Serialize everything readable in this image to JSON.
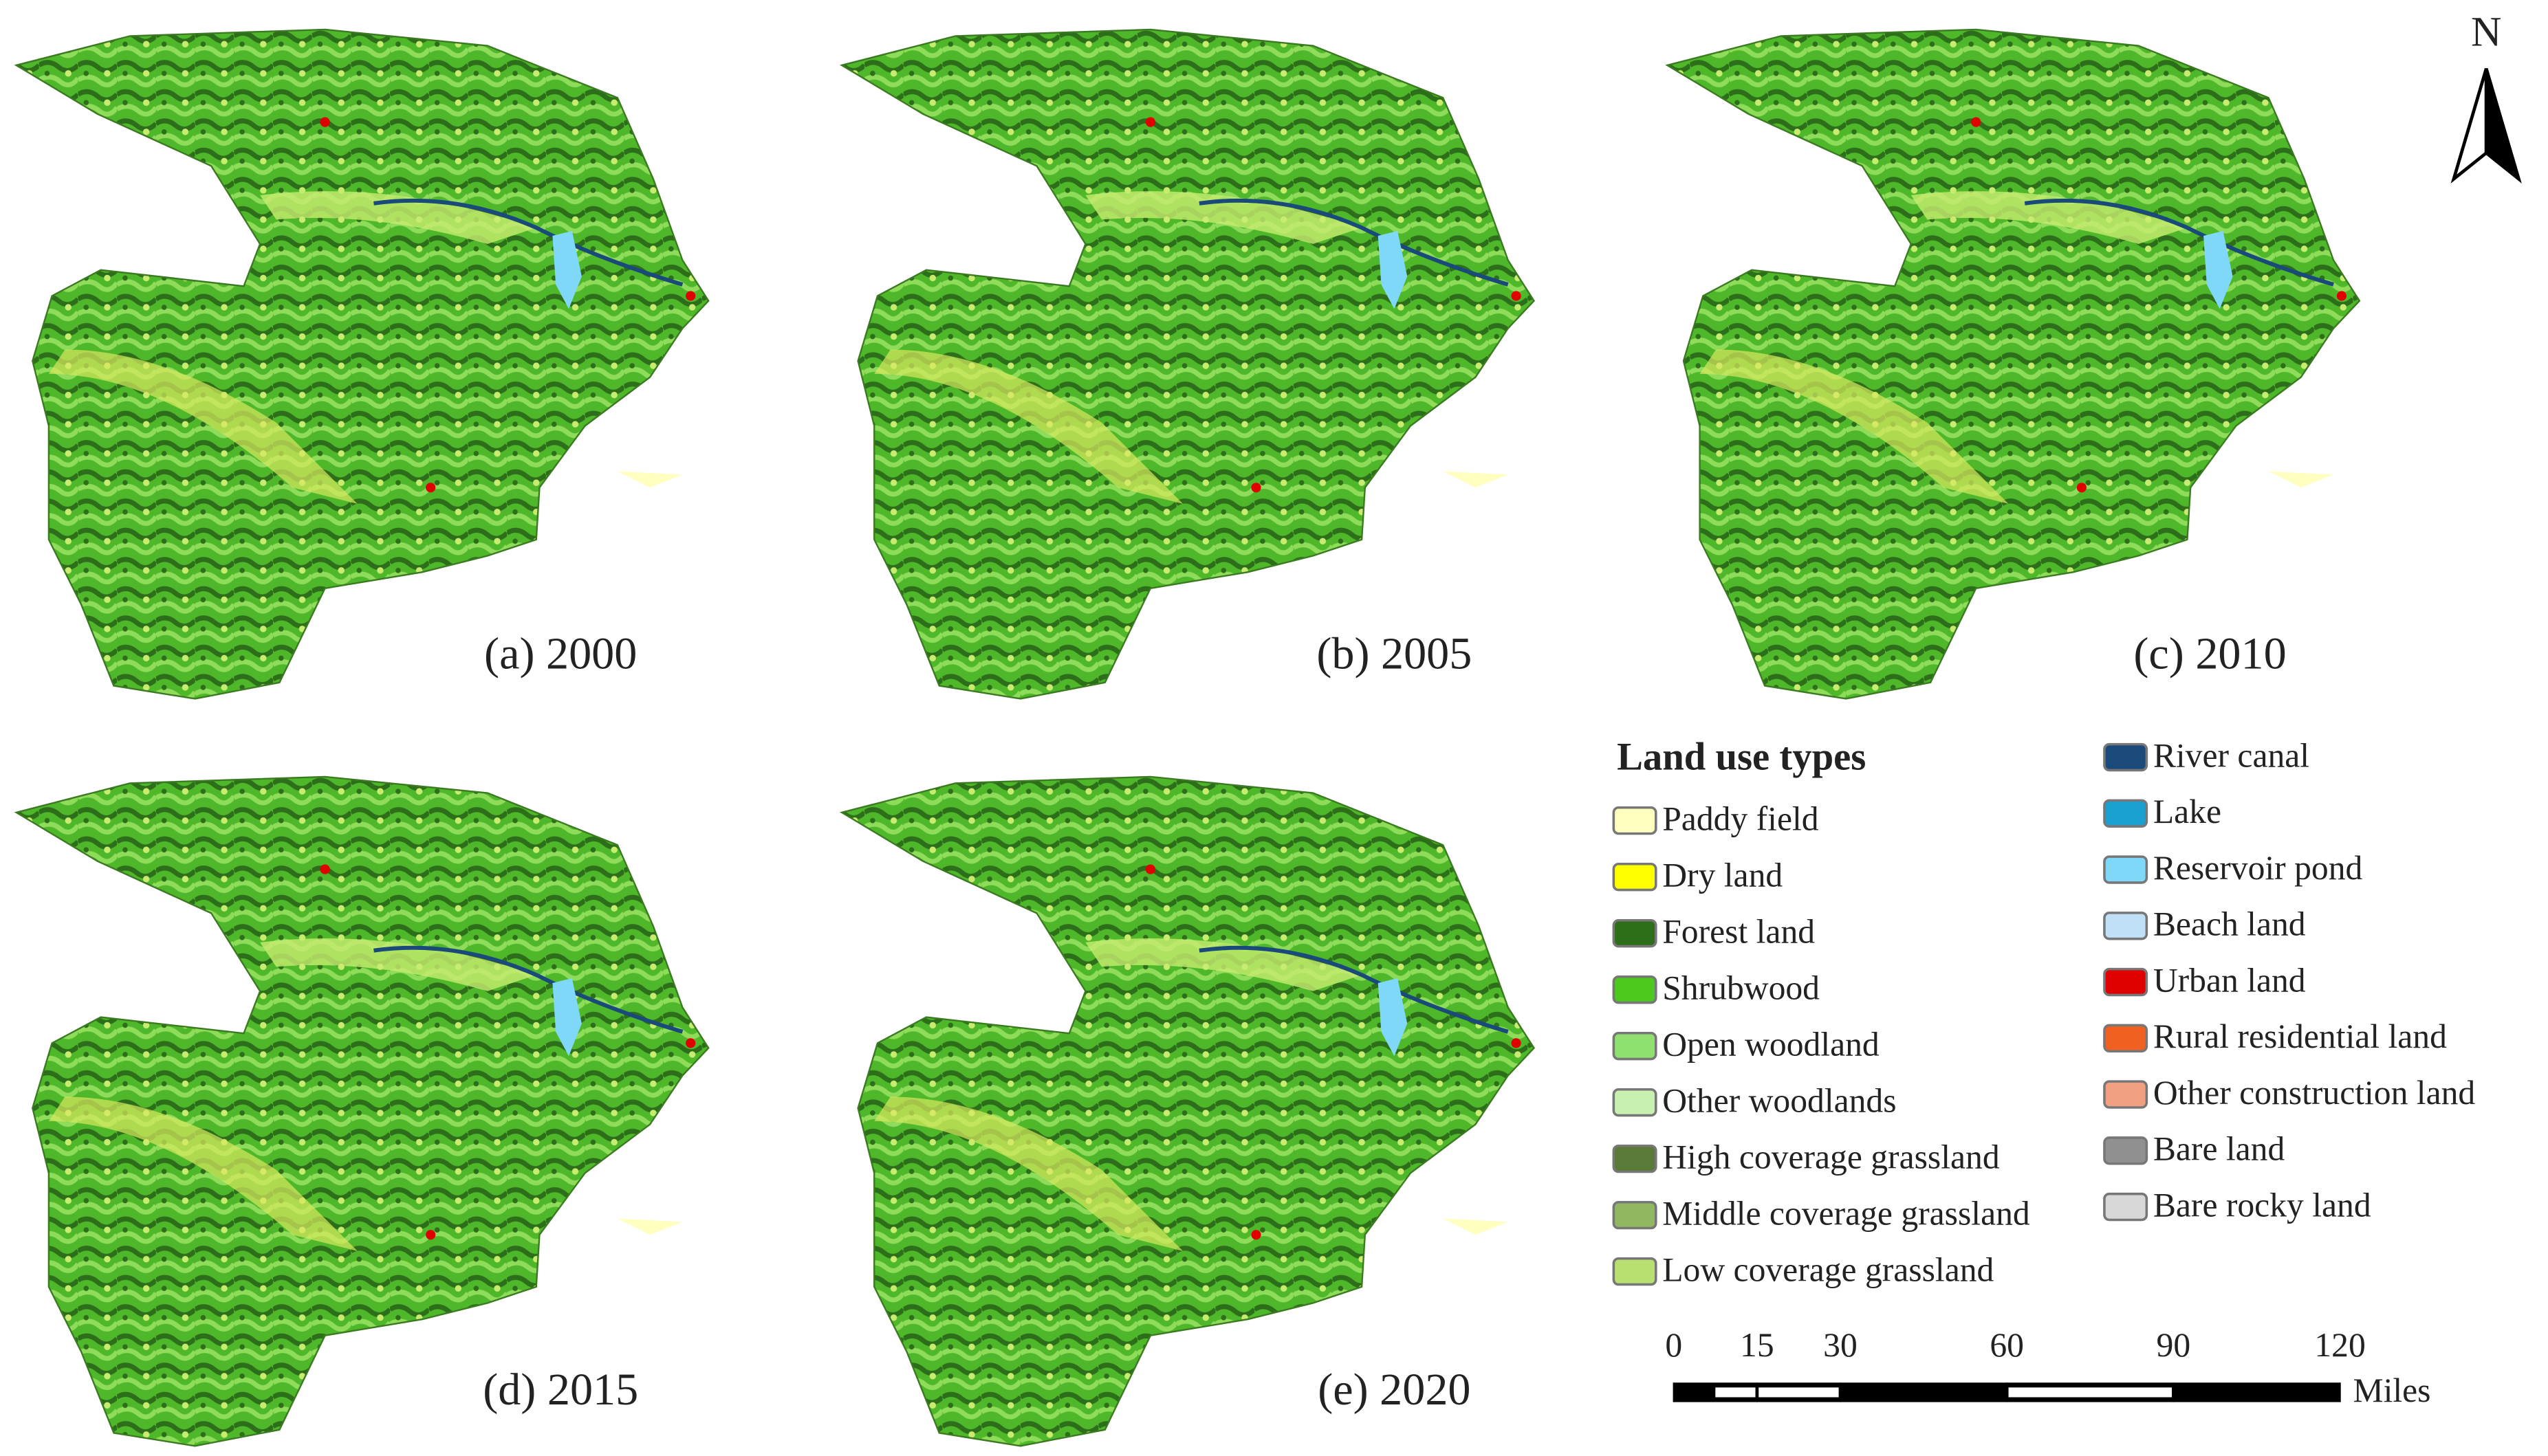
{
  "panels": [
    {
      "label": "(a) 2000"
    },
    {
      "label": "(b) 2005"
    },
    {
      "label": "(c) 2010"
    },
    {
      "label": "(d) 2015"
    },
    {
      "label": "(e) 2020"
    }
  ],
  "legend": {
    "title": "Land use types",
    "items": [
      {
        "label": "Paddy field",
        "color": "#ffffc0"
      },
      {
        "label": "Dry land",
        "color": "#ffff00"
      },
      {
        "label": "Forest land",
        "color": "#2d6e1a"
      },
      {
        "label": "Shrubwood",
        "color": "#4cc81e"
      },
      {
        "label": "Open woodland",
        "color": "#90e070"
      },
      {
        "label": "Other woodlands",
        "color": "#c8f0b0"
      },
      {
        "label": "High coverage grassland",
        "color": "#5a7a3a"
      },
      {
        "label": "Middle coverage grassland",
        "color": "#90b860"
      },
      {
        "label": "Low coverage grassland",
        "color": "#b8e070"
      },
      {
        "label": "River canal",
        "color": "#1a4a7a"
      },
      {
        "label": "Lake",
        "color": "#1aa0d0"
      },
      {
        "label": "Reservoir pond",
        "color": "#80d8f8"
      },
      {
        "label": "Beach land",
        "color": "#c0e0f8"
      },
      {
        "label": "Urban land",
        "color": "#e00000"
      },
      {
        "label": "Rural residential land",
        "color": "#f06020"
      },
      {
        "label": "Other construction land",
        "color": "#f0a080"
      },
      {
        "label": "Bare land",
        "color": "#909090"
      },
      {
        "label": "Bare rocky land",
        "color": "#d8d8d8"
      }
    ]
  },
  "scale_bar": {
    "ticks": [
      0,
      15,
      30,
      60,
      90,
      120
    ],
    "unit": "Miles"
  },
  "north": "N"
}
